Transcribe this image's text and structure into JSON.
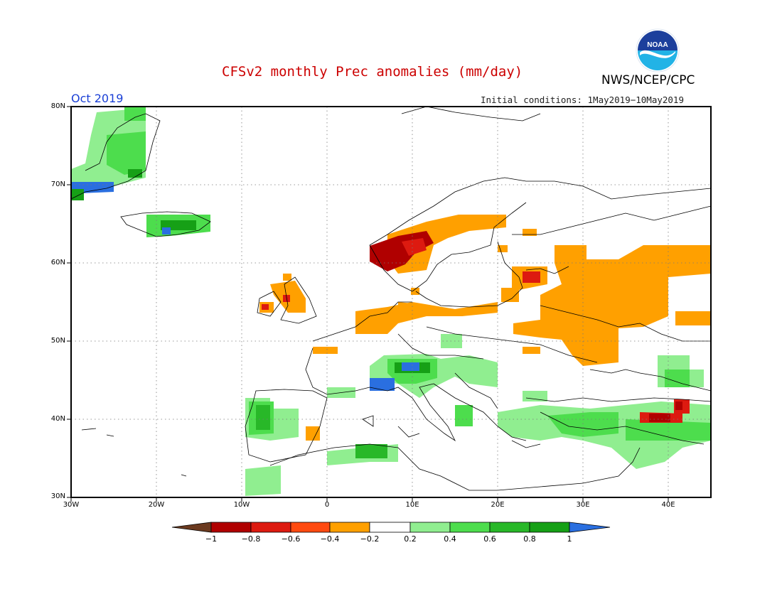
{
  "header": {
    "title": "CFSv2 monthly Prec anomalies (mm/day)",
    "agency": "NWS/NCEP/CPC",
    "logo_text": "NOAA",
    "month": "Oct 2019",
    "initial_conditions": "Initial conditions: 1May2019−10May2019"
  },
  "map": {
    "lat_labels": [
      "80N",
      "70N",
      "60N",
      "50N",
      "40N",
      "30N"
    ],
    "lon_labels": [
      "30W",
      "20W",
      "10W",
      "0",
      "10E",
      "20E",
      "30E",
      "40E"
    ],
    "extent": {
      "lon": [
        -30,
        45
      ],
      "lat": [
        30,
        80
      ]
    },
    "grid": "dotted"
  },
  "colorbar": {
    "labels": [
      "−1",
      "−0.8",
      "−0.6",
      "−0.4",
      "−0.2",
      "0.2",
      "0.4",
      "0.6",
      "0.8",
      "1"
    ],
    "colors": [
      "#6b3a1f",
      "#b00000",
      "#dd1a10",
      "#ff4a10",
      "#ffa000",
      "#ffffff",
      "#90ee90",
      "#4ddd4d",
      "#28b828",
      "#16a016",
      "#2a6fe0"
    ]
  },
  "anomaly_regions": [
    {
      "name": "Greenland",
      "category": "0.2 to 0.8"
    },
    {
      "name": "Iceland",
      "category": "0.4 to 1"
    },
    {
      "name": "Norway coast",
      "category": "−1 to −0.4"
    },
    {
      "name": "Eastern Europe / Russia",
      "category": "−0.4 to −0.2"
    },
    {
      "name": "Alps / northern Italy",
      "category": "0.4 to 1"
    },
    {
      "name": "Iberia",
      "category": "0.2 to 0.8"
    },
    {
      "name": "Mediterranean / Turkey",
      "category": "0.2 to 0.8"
    },
    {
      "name": "Eastern Turkey",
      "category": "−0.8 to −0.4"
    }
  ]
}
